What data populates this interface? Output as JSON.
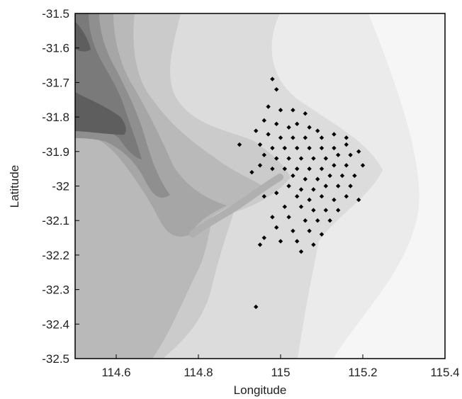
{
  "chart_data": {
    "type": "scatter",
    "xlabel": "Longitude",
    "ylabel": "Latitude",
    "xlim": [
      114.5,
      115.4
    ],
    "ylim": [
      -32.5,
      -31.5
    ],
    "xticks": [
      "114.6",
      "114.8",
      "115",
      "115.2",
      "115.4"
    ],
    "yticks": [
      "-31.5",
      "-31.6",
      "-31.7",
      "-31.8",
      "-31.9",
      "-32",
      "-32.1",
      "-32.2",
      "-32.3",
      "-32.4",
      "-32.5"
    ],
    "grid": false,
    "marker": "diamond",
    "marker_color": "#000000",
    "background": "grayscale bathymetry contours (darker = deeper water to the west, lightest near the coast on the east)",
    "points": [
      [
        114.98,
        -31.69
      ],
      [
        114.99,
        -31.72
      ],
      [
        114.97,
        -31.77
      ],
      [
        115.0,
        -31.78
      ],
      [
        115.03,
        -31.78
      ],
      [
        115.06,
        -31.79
      ],
      [
        114.96,
        -31.81
      ],
      [
        114.99,
        -31.82
      ],
      [
        115.02,
        -31.83
      ],
      [
        115.04,
        -31.82
      ],
      [
        115.07,
        -31.83
      ],
      [
        115.09,
        -31.84
      ],
      [
        114.94,
        -31.84
      ],
      [
        114.97,
        -31.85
      ],
      [
        115.0,
        -31.86
      ],
      [
        115.03,
        -31.86
      ],
      [
        115.06,
        -31.86
      ],
      [
        115.1,
        -31.86
      ],
      [
        115.13,
        -31.85
      ],
      [
        115.16,
        -31.86
      ],
      [
        114.9,
        -31.88
      ],
      [
        114.95,
        -31.88
      ],
      [
        114.98,
        -31.89
      ],
      [
        115.01,
        -31.89
      ],
      [
        115.04,
        -31.89
      ],
      [
        115.07,
        -31.89
      ],
      [
        115.1,
        -31.89
      ],
      [
        115.13,
        -31.89
      ],
      [
        115.16,
        -31.88
      ],
      [
        114.96,
        -31.91
      ],
      [
        114.99,
        -31.92
      ],
      [
        115.02,
        -31.92
      ],
      [
        115.05,
        -31.92
      ],
      [
        115.08,
        -31.92
      ],
      [
        115.11,
        -31.92
      ],
      [
        115.14,
        -31.91
      ],
      [
        115.17,
        -31.91
      ],
      [
        115.19,
        -31.9
      ],
      [
        114.95,
        -31.94
      ],
      [
        114.98,
        -31.95
      ],
      [
        115.01,
        -31.95
      ],
      [
        115.04,
        -31.95
      ],
      [
        115.07,
        -31.95
      ],
      [
        115.1,
        -31.95
      ],
      [
        115.13,
        -31.94
      ],
      [
        115.16,
        -31.94
      ],
      [
        115.2,
        -31.94
      ],
      [
        114.93,
        -31.96
      ],
      [
        115.03,
        -31.97
      ],
      [
        115.06,
        -31.98
      ],
      [
        115.09,
        -31.98
      ],
      [
        115.12,
        -31.97
      ],
      [
        115.15,
        -31.97
      ],
      [
        115.18,
        -31.97
      ],
      [
        115.02,
        -32.0
      ],
      [
        115.05,
        -32.01
      ],
      [
        115.08,
        -32.01
      ],
      [
        115.11,
        -32.0
      ],
      [
        115.14,
        -32.0
      ],
      [
        115.17,
        -32.0
      ],
      [
        114.99,
        -32.02
      ],
      [
        114.96,
        -32.03
      ],
      [
        115.04,
        -32.03
      ],
      [
        115.07,
        -32.04
      ],
      [
        115.1,
        -32.03
      ],
      [
        115.13,
        -32.04
      ],
      [
        115.16,
        -32.03
      ],
      [
        115.19,
        -32.04
      ],
      [
        115.01,
        -32.06
      ],
      [
        115.05,
        -32.06
      ],
      [
        115.08,
        -32.07
      ],
      [
        115.11,
        -32.07
      ],
      [
        115.14,
        -32.07
      ],
      [
        114.98,
        -32.09
      ],
      [
        115.02,
        -32.09
      ],
      [
        115.06,
        -32.1
      ],
      [
        115.09,
        -32.1
      ],
      [
        115.12,
        -32.1
      ],
      [
        114.99,
        -32.12
      ],
      [
        115.03,
        -32.13
      ],
      [
        115.07,
        -32.13
      ],
      [
        115.1,
        -32.14
      ],
      [
        114.96,
        -32.15
      ],
      [
        115.0,
        -32.16
      ],
      [
        115.04,
        -32.16
      ],
      [
        115.08,
        -32.17
      ],
      [
        114.95,
        -32.17
      ],
      [
        115.05,
        -32.19
      ],
      [
        114.94,
        -32.35
      ]
    ]
  }
}
